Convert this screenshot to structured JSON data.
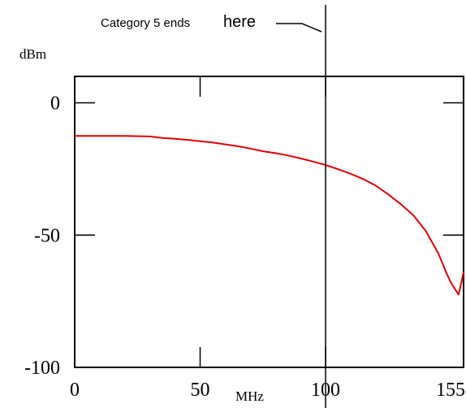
{
  "chart_data": {
    "type": "line",
    "title": "",
    "xlabel": "MHz",
    "ylabel": "dBm",
    "xlim": [
      0,
      155
    ],
    "ylim": [
      -100,
      10
    ],
    "grid": false,
    "x_ticks": [
      {
        "value": 0,
        "label": "0"
      },
      {
        "value": 50,
        "label": "50"
      },
      {
        "value": 100,
        "label": "100"
      },
      {
        "value": 155,
        "label": "155"
      }
    ],
    "y_ticks": [
      {
        "value": 0,
        "label": "0"
      },
      {
        "value": -50,
        "label": "-50"
      },
      {
        "value": -100,
        "label": "-100"
      }
    ],
    "series": [
      {
        "color": "#e00000",
        "x": [
          0,
          10,
          20,
          30,
          35,
          40,
          45,
          50,
          55,
          60,
          65,
          70,
          75,
          80,
          85,
          90,
          95,
          100,
          105,
          110,
          115,
          120,
          125,
          130,
          135,
          140,
          145,
          148,
          150,
          152,
          153,
          154,
          155
        ],
        "values": [
          -12.5,
          -12.5,
          -12.5,
          -12.7,
          -13.3,
          -13.6,
          -14.0,
          -14.5,
          -15.0,
          -15.7,
          -16.4,
          -17.3,
          -18.3,
          -19.0,
          -19.9,
          -21.0,
          -22.2,
          -23.5,
          -25.1,
          -26.8,
          -28.8,
          -31.3,
          -34.6,
          -38.3,
          -42.5,
          -48.5,
          -57.0,
          -64.0,
          -68.0,
          -71.0,
          -72.5,
          -68.5,
          -64.0
        ]
      }
    ],
    "annotations": [
      {
        "x": 100,
        "type": "vline",
        "text_parts": [
          "Category 5 ends",
          "here"
        ]
      }
    ]
  }
}
